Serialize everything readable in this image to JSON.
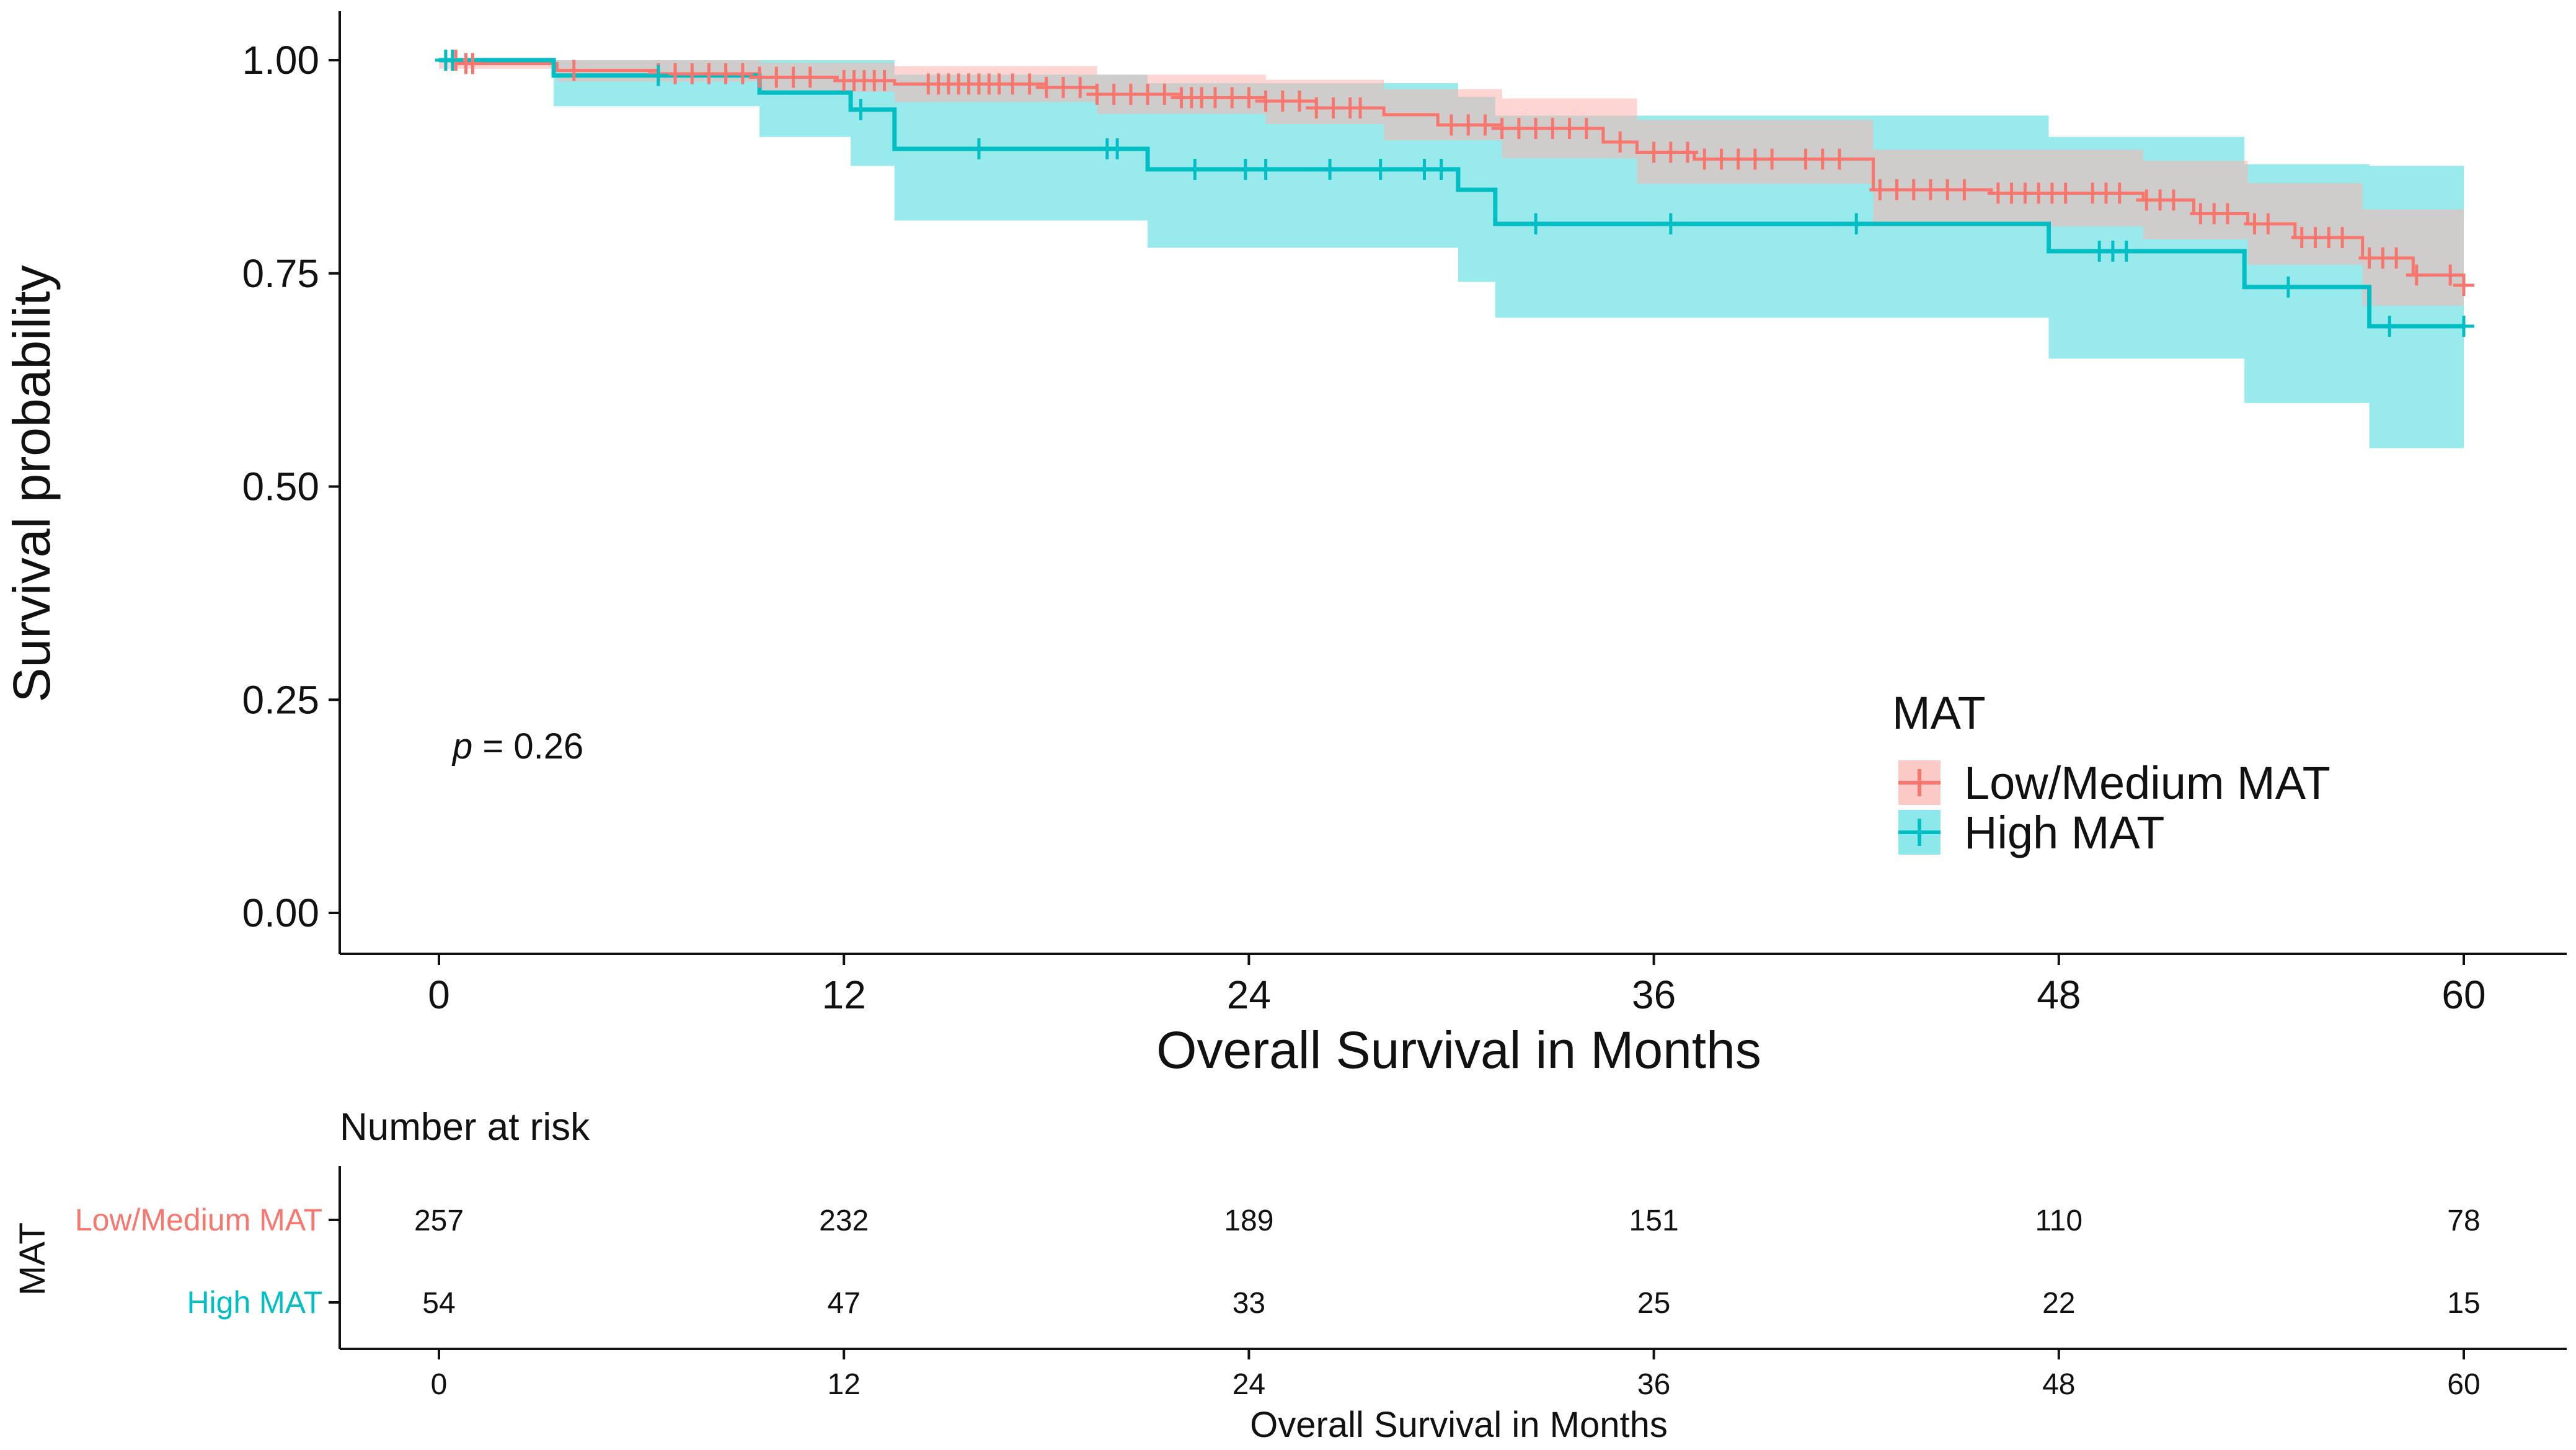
{
  "chart_data": {
    "type": "line",
    "subtype": "kaplan-meier",
    "xlabel": "Overall Survival in Months",
    "ylabel": "Survival probability",
    "xlim": [
      0,
      60
    ],
    "ylim": [
      0,
      1
    ],
    "x_ticks": [
      0,
      12,
      24,
      36,
      48,
      60
    ],
    "y_ticks": [
      0.0,
      0.25,
      0.5,
      0.75,
      1.0
    ],
    "y_tick_labels": [
      "0.00",
      "0.25",
      "0.50",
      "0.75",
      "1.00"
    ],
    "annotation": {
      "p_label": "p",
      "p_value": " = 0.26"
    },
    "legend": {
      "title": "MAT",
      "position": "right"
    },
    "series": [
      {
        "name": "Low/Medium MAT",
        "color": "#F8766D",
        "band_color": "#FBB4AE",
        "steps": [
          [
            0,
            1.0
          ],
          [
            0.6,
            0.996
          ],
          [
            3.5,
            0.988
          ],
          [
            6.5,
            0.984
          ],
          [
            9.5,
            0.98
          ],
          [
            11.8,
            0.976
          ],
          [
            13.5,
            0.972
          ],
          [
            18,
            0.968
          ],
          [
            19.5,
            0.96
          ],
          [
            22,
            0.956
          ],
          [
            24.5,
            0.952
          ],
          [
            26,
            0.944
          ],
          [
            28,
            0.936
          ],
          [
            29.6,
            0.924
          ],
          [
            31.5,
            0.92
          ],
          [
            34.5,
            0.904
          ],
          [
            35.5,
            0.892
          ],
          [
            37.2,
            0.884
          ],
          [
            42.5,
            0.848
          ],
          [
            46,
            0.844
          ],
          [
            50.5,
            0.836
          ],
          [
            52,
            0.82
          ],
          [
            53.6,
            0.808
          ],
          [
            55,
            0.792
          ],
          [
            57,
            0.768
          ],
          [
            58.5,
            0.748
          ],
          [
            60,
            0.736
          ]
        ],
        "lower": [
          [
            0,
            0.99
          ],
          [
            3.5,
            0.975
          ],
          [
            9.5,
            0.963
          ],
          [
            13.5,
            0.951
          ],
          [
            19.5,
            0.937
          ],
          [
            24.5,
            0.925
          ],
          [
            28,
            0.906
          ],
          [
            31.5,
            0.885
          ],
          [
            35.5,
            0.855
          ],
          [
            42.5,
            0.805
          ],
          [
            50.5,
            0.79
          ],
          [
            53.6,
            0.76
          ],
          [
            57,
            0.712
          ],
          [
            60,
            0.68
          ]
        ],
        "upper": [
          [
            0,
            1.0
          ],
          [
            3.5,
            1.0
          ],
          [
            9.5,
            0.997
          ],
          [
            13.5,
            0.993
          ],
          [
            19.5,
            0.983
          ],
          [
            24.5,
            0.977
          ],
          [
            28,
            0.966
          ],
          [
            31.5,
            0.955
          ],
          [
            35.5,
            0.93
          ],
          [
            42.5,
            0.895
          ],
          [
            50.5,
            0.882
          ],
          [
            53.6,
            0.856
          ],
          [
            57,
            0.825
          ],
          [
            60,
            0.796
          ]
        ],
        "censor_x": [
          0.2,
          0.5,
          0.8,
          1.0,
          4.0,
          6.5,
          7.0,
          7.5,
          8.0,
          8.5,
          9.0,
          9.5,
          10.0,
          10.5,
          11.0,
          12.0,
          12.3,
          12.6,
          12.9,
          13.2,
          14.5,
          14.8,
          15.1,
          15.4,
          15.7,
          16.0,
          16.3,
          16.6,
          17.0,
          17.5,
          18.0,
          18.5,
          19.0,
          19.5,
          20.0,
          20.5,
          21.0,
          21.5,
          22.0,
          22.3,
          22.6,
          23.0,
          23.5,
          24.0,
          24.5,
          25.0,
          25.5,
          26.0,
          26.5,
          27.0,
          27.3,
          30.0,
          30.5,
          31.0,
          31.5,
          32.0,
          32.5,
          33.0,
          33.5,
          34.0,
          35.0,
          36.0,
          36.5,
          37.0,
          37.5,
          38.0,
          38.5,
          39.0,
          39.5,
          40.5,
          41.0,
          41.5,
          42.7,
          43.2,
          43.7,
          44.2,
          44.7,
          45.2,
          46.2,
          46.6,
          47.0,
          47.4,
          47.8,
          48.2,
          49.0,
          49.4,
          49.8,
          50.6,
          51.0,
          51.4,
          52.2,
          52.6,
          53.0,
          53.8,
          54.2,
          55.2,
          55.6,
          56.0,
          56.4,
          57.2,
          57.6,
          58.0,
          58.6,
          59.6,
          60.0
        ]
      },
      {
        "name": "High MAT",
        "color": "#00BFC4",
        "band_color": "#7FE5E8",
        "steps": [
          [
            0,
            1.0
          ],
          [
            3.4,
            0.982
          ],
          [
            9.5,
            0.962
          ],
          [
            12.2,
            0.942
          ],
          [
            13.5,
            0.896
          ],
          [
            21,
            0.872
          ],
          [
            30.2,
            0.848
          ],
          [
            31.3,
            0.808
          ],
          [
            47.7,
            0.776
          ],
          [
            53.5,
            0.734
          ],
          [
            57.2,
            0.688
          ],
          [
            60,
            0.688
          ]
        ],
        "lower": [
          [
            0,
            1.0
          ],
          [
            3.4,
            0.946
          ],
          [
            9.5,
            0.91
          ],
          [
            12.2,
            0.876
          ],
          [
            13.5,
            0.812
          ],
          [
            21,
            0.78
          ],
          [
            30.2,
            0.74
          ],
          [
            31.3,
            0.698
          ],
          [
            47.7,
            0.65
          ],
          [
            53.5,
            0.598
          ],
          [
            57.2,
            0.545
          ],
          [
            60,
            0.545
          ]
        ],
        "upper": [
          [
            0,
            1.0
          ],
          [
            9.5,
            1.0
          ],
          [
            12.2,
            1.0
          ],
          [
            13.5,
            0.983
          ],
          [
            21,
            0.973
          ],
          [
            30.2,
            0.957
          ],
          [
            31.3,
            0.935
          ],
          [
            47.7,
            0.91
          ],
          [
            53.5,
            0.878
          ],
          [
            57.2,
            0.876
          ],
          [
            60,
            0.876
          ]
        ],
        "censor_x": [
          0.2,
          0.4,
          6.5,
          12.5,
          16.0,
          19.8,
          20.1,
          22.4,
          23.9,
          24.5,
          26.4,
          27.9,
          29.2,
          29.7,
          32.5,
          36.5,
          42.0,
          49.2,
          49.6,
          50.0,
          54.8,
          57.8,
          60.0
        ]
      }
    ],
    "risk_table": {
      "title": "Number at risk",
      "ylabel": "MAT",
      "xlabel": "Overall Survival in Months",
      "x_ticks": [
        0,
        12,
        24,
        36,
        48,
        60
      ],
      "rows": [
        {
          "group": "Low/Medium MAT",
          "color": "#F8766D",
          "counts": [
            "257",
            "232",
            "189",
            "151",
            "110",
            "78"
          ]
        },
        {
          "group": "High MAT",
          "color": "#00BFC4",
          "counts": [
            "54",
            "47",
            "33",
            "25",
            "22",
            "15"
          ]
        }
      ]
    }
  }
}
